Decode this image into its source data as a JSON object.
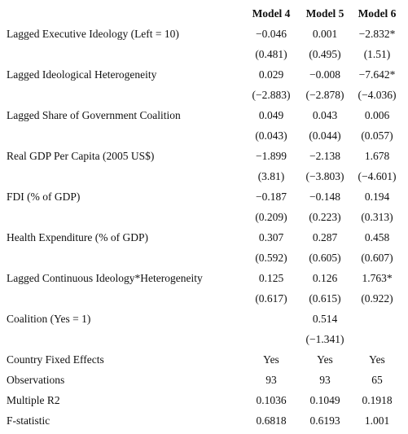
{
  "table": {
    "header": [
      "Model 4",
      "Model 5",
      "Model 6"
    ],
    "rows": [
      [
        "Lagged Executive Ideology (Left = 10)",
        "−0.046",
        "0.001",
        "−2.832*"
      ],
      [
        null,
        "(0.481)",
        "(0.495)",
        "(1.51)"
      ],
      [
        "Lagged Ideological Heterogeneity",
        "0.029",
        "−0.008",
        "−7.642*"
      ],
      [
        null,
        "(−2.883)",
        "(−2.878)",
        "(−4.036)"
      ],
      [
        "Lagged Share of Government Coalition",
        "0.049",
        "0.043",
        "0.006"
      ],
      [
        null,
        "(0.043)",
        "(0.044)",
        "(0.057)"
      ],
      [
        "Real GDP Per Capita (2005 US$)",
        "−1.899",
        "−2.138",
        "1.678"
      ],
      [
        null,
        "(3.81)",
        "(−3.803)",
        "(−4.601)"
      ],
      [
        "FDI (% of GDP)",
        "−0.187",
        "−0.148",
        "0.194"
      ],
      [
        null,
        "(0.209)",
        "(0.223)",
        "(0.313)"
      ],
      [
        "Health Expenditure (% of GDP)",
        "0.307",
        "0.287",
        "0.458"
      ],
      [
        null,
        "(0.592)",
        "(0.605)",
        "(0.607)"
      ],
      [
        "Lagged Continuous Ideology*Heterogeneity",
        "0.125",
        "0.126",
        "1.763*"
      ],
      [
        null,
        "(0.617)",
        "(0.615)",
        "(0.922)"
      ],
      [
        "Coalition (Yes = 1)",
        null,
        "0.514",
        null
      ],
      [
        null,
        null,
        "(−1.341)",
        null
      ],
      [
        "Country Fixed Effects",
        "Yes",
        "Yes",
        "Yes"
      ],
      [
        "Observations",
        "93",
        "93",
        "65"
      ],
      [
        "Multiple R2",
        "0.1036",
        "0.1049",
        "0.1918"
      ],
      [
        "F-statistic",
        "0.6818",
        "0.6193",
        "1.001"
      ]
    ]
  }
}
